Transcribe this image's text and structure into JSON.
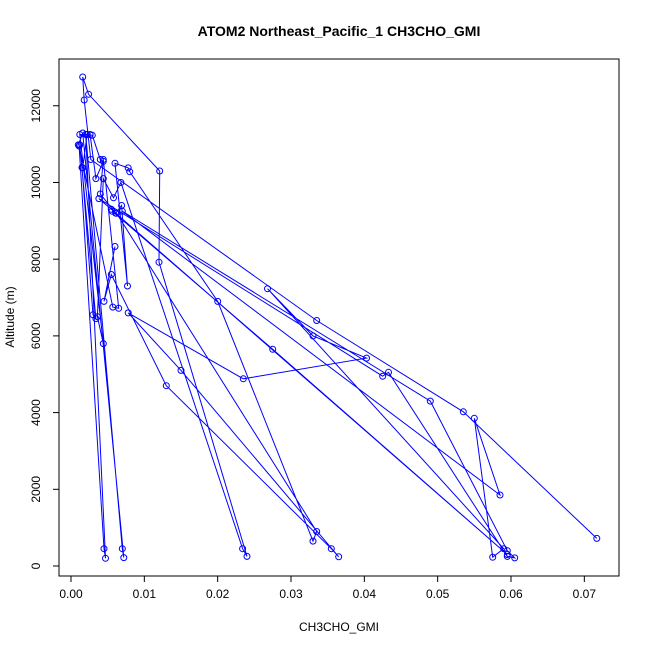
{
  "chart_data": {
    "type": "line",
    "title": "ATOM2 Northeast_Pacific_1 CH3CHO_GMI",
    "xlabel": "CH3CHO_GMI",
    "ylabel": "Altitude (m)",
    "xlim": [
      0,
      0.074
    ],
    "ylim": [
      0,
      12800
    ],
    "x_ticks": [
      0,
      0.01,
      0.02,
      0.03,
      0.04,
      0.05,
      0.06,
      0.07
    ],
    "x_tick_labels": [
      "0.00",
      "0.01",
      "0.02",
      "0.03",
      "0.04",
      "0.05",
      "0.06",
      "0.07"
    ],
    "y_ticks": [
      0,
      2000,
      4000,
      6000,
      8000,
      10000,
      12000
    ],
    "y_tick_labels": [
      "0",
      "2000",
      "4000",
      "6000",
      "8000",
      "10000",
      "12000"
    ],
    "grid": false,
    "legend": "none",
    "marker": "open-circle",
    "series": [
      {
        "color": "#0000ff",
        "points": [
          [
            0.0717,
            720
          ],
          [
            0.0535,
            4020
          ],
          [
            0.0335,
            6400
          ],
          [
            0.0027,
            10600
          ],
          [
            0.0018,
            12150
          ],
          [
            0.0016,
            12750
          ],
          [
            0.0024,
            12300
          ],
          [
            0.0121,
            10300
          ],
          [
            0.012,
            7920
          ],
          [
            0.024,
            250
          ],
          [
            0.0234,
            450
          ],
          [
            0.0068,
            10000
          ],
          [
            0.0058,
            9600
          ],
          [
            0.0044,
            10100
          ],
          [
            0.0036,
            6500
          ],
          [
            0.0044,
            5800
          ],
          [
            0.0012,
            11250
          ],
          [
            0.0022,
            11250
          ],
          [
            0.0029,
            11230
          ],
          [
            0.004,
            10600
          ],
          [
            0.0044,
            10550
          ],
          [
            0.0034,
            10100
          ],
          [
            0.0026,
            11250
          ],
          [
            0.0022,
            11250
          ],
          [
            0.0016,
            10380
          ],
          [
            0.0015,
            10390
          ],
          [
            0.003,
            6550
          ],
          [
            0.0034,
            6450
          ],
          [
            0.0012,
            10980
          ],
          [
            0.001,
            10980
          ],
          [
            0.0016,
            11290
          ],
          [
            0.0072,
            220
          ],
          [
            0.007,
            450
          ],
          [
            0.002,
            11250
          ],
          [
            0.0047,
            200
          ],
          [
            0.0045,
            450
          ],
          [
            0.0011,
            10950
          ],
          [
            0.0057,
            6750
          ],
          [
            0.0065,
            6720
          ],
          [
            0.0044,
            10600
          ],
          [
            0.004,
            9700
          ],
          [
            0.0061,
            9200
          ],
          [
            0.0069,
            9400
          ],
          [
            0.0077,
            7300
          ],
          [
            0.006,
            10500
          ],
          [
            0.0078,
            10380
          ],
          [
            0.008,
            10280
          ],
          [
            0.02,
            6900
          ],
          [
            0.033,
            650
          ],
          [
            0.0335,
            900
          ],
          [
            0.0062,
            9200
          ],
          [
            0.0056,
            9250
          ],
          [
            0.0275,
            5650
          ],
          [
            0.0595,
            300
          ],
          [
            0.0055,
            9300
          ],
          [
            0.0038,
            9580
          ],
          [
            0.0425,
            4950
          ],
          [
            0.0433,
            5050
          ],
          [
            0.0595,
            250
          ],
          [
            0.0605,
            210
          ],
          [
            0.0595,
            400
          ],
          [
            0.049,
            4300
          ],
          [
            0.007,
            9250
          ],
          [
            0.0585,
            1850
          ],
          [
            0.055,
            3850
          ],
          [
            0.0575,
            230
          ],
          [
            0.059,
            450
          ],
          [
            0.0268,
            7230
          ],
          [
            0.033,
            6000
          ],
          [
            0.0403,
            5420
          ],
          [
            0.0235,
            4880
          ],
          [
            0.0078,
            6600
          ],
          [
            0.015,
            5100
          ],
          [
            0.0365,
            240
          ],
          [
            0.0355,
            450
          ],
          [
            0.013,
            4700
          ],
          [
            0.0055,
            7600
          ],
          [
            0.0045,
            6900
          ],
          [
            0.006,
            8330
          ]
        ]
      }
    ]
  }
}
